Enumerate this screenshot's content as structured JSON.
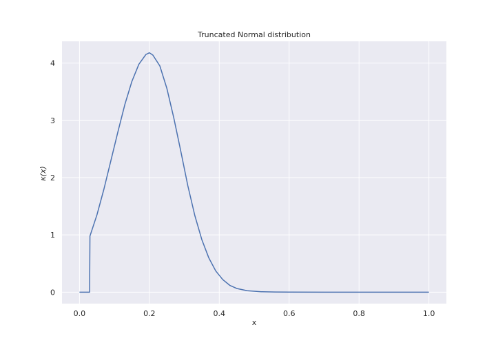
{
  "chart_data": {
    "type": "line",
    "title": "Truncated Normal distribution",
    "xlabel": "x",
    "ylabel": "κ(x)",
    "xlim": [
      -0.05,
      1.05
    ],
    "ylim": [
      -0.2,
      4.38
    ],
    "xticks": [
      0.0,
      0.2,
      0.4,
      0.6,
      0.8,
      1.0
    ],
    "xtick_labels": [
      "0.0",
      "0.2",
      "0.4",
      "0.6",
      "0.8",
      "1.0"
    ],
    "yticks": [
      0,
      1,
      2,
      3,
      4
    ],
    "ytick_labels": [
      "0",
      "1",
      "2",
      "3",
      "4"
    ],
    "grid": true,
    "background_color": "#eaeaf2",
    "grid_color": "#ffffff",
    "series": [
      {
        "color": "#4c72b0",
        "x": [
          0.0,
          0.029,
          0.03,
          0.05,
          0.07,
          0.09,
          0.11,
          0.13,
          0.15,
          0.17,
          0.19,
          0.2,
          0.21,
          0.23,
          0.25,
          0.27,
          0.29,
          0.31,
          0.33,
          0.35,
          0.37,
          0.39,
          0.41,
          0.43,
          0.45,
          0.48,
          0.52,
          0.56,
          0.6,
          0.7,
          0.8,
          0.9,
          1.0
        ],
        "y": [
          0.0,
          0.0,
          0.98,
          1.35,
          1.8,
          2.3,
          2.8,
          3.28,
          3.68,
          3.98,
          4.15,
          4.18,
          4.14,
          3.95,
          3.56,
          3.04,
          2.46,
          1.86,
          1.34,
          0.92,
          0.6,
          0.37,
          0.22,
          0.12,
          0.065,
          0.025,
          0.008,
          0.003,
          0.001,
          0.0,
          0.0,
          0.0,
          0.0
        ]
      }
    ]
  }
}
